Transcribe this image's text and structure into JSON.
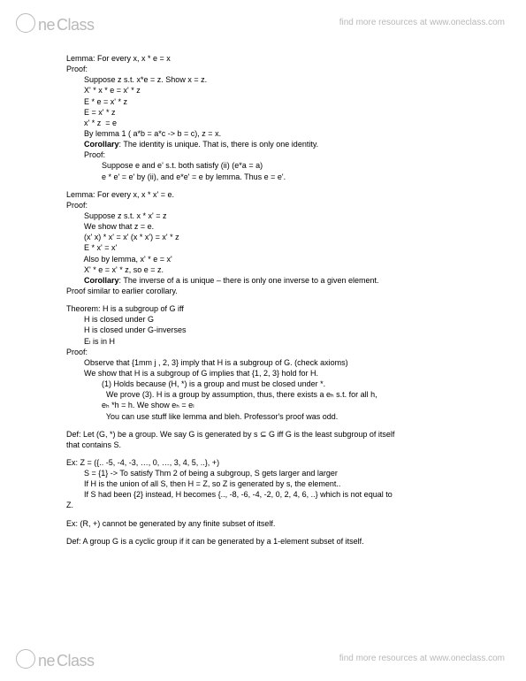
{
  "brand_ne": "ne",
  "brand_class": "Class",
  "tagline": "find more resources at www.oneclass.com",
  "lines": [
    {
      "t": "Lemma: For every x, x * e = x",
      "cls": "row"
    },
    {
      "t": "Proof:",
      "cls": "row"
    },
    {
      "t": "        Suppose z s.t. x*e = z. Show x = z.",
      "cls": "row"
    },
    {
      "t": "        X' * x * e = x' * z",
      "cls": "row"
    },
    {
      "t": "        E * e = x' * z",
      "cls": "row"
    },
    {
      "t": "        E = x' * z",
      "cls": "row"
    },
    {
      "t": "        x' * z  = e",
      "cls": "row"
    },
    {
      "t": "        By lemma 1 ( a*b = a*c -> b = c), z = x.",
      "cls": "row"
    },
    {
      "t": "        <b>Corollary</b>: The identity is unique. That is, there is only one identity.",
      "cls": "row",
      "html": true
    },
    {
      "t": "        Proof:",
      "cls": "row"
    },
    {
      "t": "                Suppose e and e' s.t. both satisfy (ii) (e*a = a)",
      "cls": "row"
    },
    {
      "t": "                e * e' = e' by (ii), and e*e' = e by lemma. Thus e = e'.",
      "cls": "row"
    },
    {
      "t": "",
      "cls": "row para"
    },
    {
      "t": "Lemma: For every x, x * x' = e.",
      "cls": "row"
    },
    {
      "t": "Proof:",
      "cls": "row"
    },
    {
      "t": "        Suppose z s.t. x * x' = z",
      "cls": "row"
    },
    {
      "t": "        We show that z = e.",
      "cls": "row"
    },
    {
      "t": "        (x' x) * x' = x' (x * x') = x' * z",
      "cls": "row"
    },
    {
      "t": "        E * x' = x'",
      "cls": "row"
    },
    {
      "t": "        Also by lemma, x' * e = x'",
      "cls": "row"
    },
    {
      "t": "        X' * e = x' * z, so e = z.",
      "cls": "row"
    },
    {
      "t": "        <b>Corollary</b>: The inverse of a is unique – there is only one inverse to a given element.",
      "cls": "row",
      "html": true
    },
    {
      "t": "Proof similar to earlier corollary.",
      "cls": "row"
    },
    {
      "t": "",
      "cls": "row para"
    },
    {
      "t": "Theorem: H is a subgroup of G iff",
      "cls": "row"
    },
    {
      "t": "        H is closed under G",
      "cls": "row"
    },
    {
      "t": "        H is closed under G-inverses",
      "cls": "row"
    },
    {
      "t": "        Eₗ is in H",
      "cls": "row"
    },
    {
      "t": "Proof:",
      "cls": "row"
    },
    {
      "t": "        Observe that {1mm j , 2, 3} imply that H is a subgroup of G. (check axioms)",
      "cls": "row"
    },
    {
      "t": "        We show that H is a subgroup of G implies that {1, 2, 3} hold for H.",
      "cls": "row"
    },
    {
      "t": "                (1) Holds because (H, *) is a group and must be closed under *.",
      "cls": "row"
    },
    {
      "t": "                  We prove (3). H is a group by assumption, thus, there exists a eₕ s.t. for all h,",
      "cls": "row"
    },
    {
      "t": "                eₕ *h = h. We show eₕ = eₗ",
      "cls": "row"
    },
    {
      "t": "                  You can use stuff like lemma and bleh. Professor's proof was odd.",
      "cls": "row"
    },
    {
      "t": "",
      "cls": "row para"
    },
    {
      "t": "Def: Let (G, *) be a group. We say G is generated by s ⊆ G iff G is the least subgroup of itself",
      "cls": "row"
    },
    {
      "t": "that contains S.",
      "cls": "row"
    },
    {
      "t": "",
      "cls": "row para"
    },
    {
      "t": "Ex: Z = ({.. -5, -4, -3, …, 0, …, 3, 4, 5, ..}, +)",
      "cls": "row"
    },
    {
      "t": "        S = {1} -> To satisfy Thm 2 of being a subgroup, S gets larger and larger",
      "cls": "row"
    },
    {
      "t": "        If H is the union of all S, then H = Z, so Z is generated by s, the element..",
      "cls": "row"
    },
    {
      "t": "        If S had been {2} instead, H becomes {.., -8, -6, -4, -2, 0, 2, 4, 6, ..} which is not equal to",
      "cls": "row"
    },
    {
      "t": "Z.",
      "cls": "row"
    },
    {
      "t": "",
      "cls": "row para"
    },
    {
      "t": "Ex: (R, +) cannot be generated by any finite subset of itself.",
      "cls": "row"
    },
    {
      "t": "",
      "cls": "row para"
    },
    {
      "t": "Def: A group G is a cyclic group if it can be generated by a 1-element subset of itself.",
      "cls": "row"
    }
  ]
}
